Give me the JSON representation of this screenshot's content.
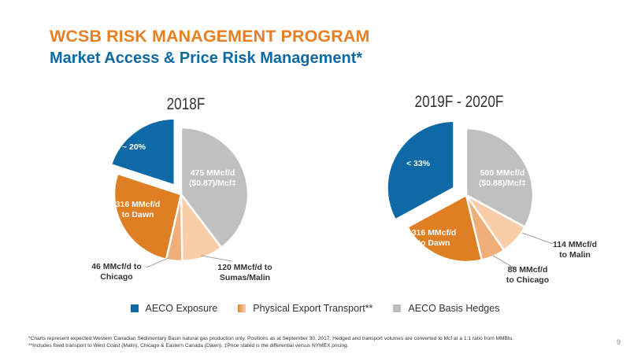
{
  "slide": {
    "title": "WCSB RISK MANAGEMENT PROGRAM",
    "subtitle": "Market Access & Price Risk Management*",
    "footnotes": [
      "*Charts represent expected Western Canadian Sedimentary Basin natural gas production only. Positions as at September 30, 2017. Hedged and transport volumes are converted to Mcf at a 1:1 ratio from MMBtu.",
      "**Includes fixed transport to West Coast (Malin), Chicago & Eastern Canada (Dawn).  ‡Price stated is the differential versus NYMEX pricing."
    ],
    "page_number": "9"
  },
  "legend": [
    {
      "label": "AECO Exposure",
      "color": "#0e6aa6",
      "style": "solid"
    },
    {
      "label": "Physical Export Transport**",
      "color": "#e07e23",
      "style": "gradient"
    },
    {
      "label": "AECO Basis Hedges",
      "color": "#bdbdbd",
      "style": "solid"
    }
  ],
  "chart_data": [
    {
      "type": "pie",
      "title": "2018F",
      "slices": [
        {
          "label": "475 MMcf/d\n($0.87)/Mcf‡",
          "value": 475,
          "color": "#c0c0c0",
          "exploded": false
        },
        {
          "label": "120 MMcf/d to\nSumas/Malin",
          "value": 120,
          "color": "#f8cda8",
          "exploded": false
        },
        {
          "label": "46 MMcf/d to\nChicago",
          "value": 46,
          "color": "#f0ae78",
          "exploded": false
        },
        {
          "label": "316 MMcf/d\nto Dawn",
          "value": 316,
          "color": "#e07e23",
          "exploded": false
        },
        {
          "label": "~ 20%",
          "value": 239,
          "color": "#0e6aa6",
          "exploded": true
        }
      ]
    },
    {
      "type": "pie",
      "title": "2019F - 2020F",
      "slices": [
        {
          "label": "500 MMcf/d\n($0.88)/Mcf‡",
          "value": 500,
          "color": "#c0c0c0",
          "exploded": false
        },
        {
          "label": "114 MMcf/d\nto Malin",
          "value": 114,
          "color": "#f8cda8",
          "exploded": false
        },
        {
          "label": "88 MMcf/d\nto Chicago",
          "value": 88,
          "color": "#f0ae78",
          "exploded": false
        },
        {
          "label": "316 MMcf/d\nto Dawn",
          "value": 316,
          "color": "#e07e23",
          "exploded": false
        },
        {
          "label": "< 33%",
          "value": 500,
          "color": "#0e6aa6",
          "exploded": true
        }
      ]
    }
  ]
}
